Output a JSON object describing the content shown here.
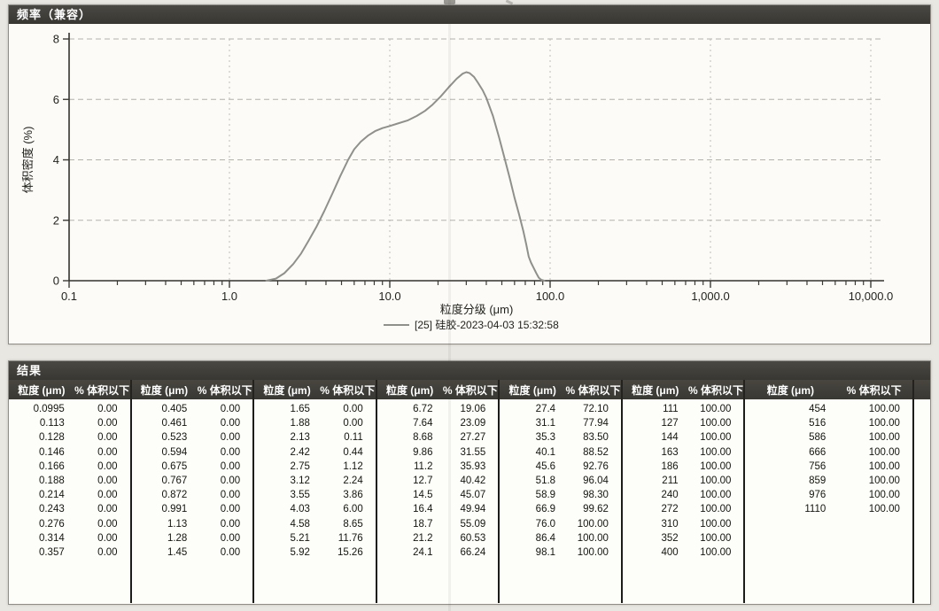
{
  "chart_panel": {
    "title": "频率（兼容）"
  },
  "chart_data": {
    "type": "line",
    "title": "频率（兼容）",
    "xlabel": "粒度分级 (μm)",
    "ylabel": "体积密度 (%)",
    "x_scale": "log",
    "xlim": [
      0.1,
      10000
    ],
    "ylim": [
      0,
      8
    ],
    "x_tick_values": [
      0.1,
      1,
      10,
      100,
      1000,
      10000
    ],
    "x_tick_labels": [
      "0.1",
      "1.0",
      "10.0",
      "100.0",
      "1,000.0",
      "10,000.0"
    ],
    "y_ticks": [
      0,
      2,
      4,
      6,
      8
    ],
    "grid": true,
    "legend_position": "bottom",
    "series": [
      {
        "name": "[25] 硅胶-2023-04-03 15:32:58",
        "color": "#8f8f8c",
        "points": [
          [
            1.7,
            0
          ],
          [
            1.95,
            0.07
          ],
          [
            2.2,
            0.25
          ],
          [
            2.5,
            0.55
          ],
          [
            2.8,
            0.9
          ],
          [
            3.1,
            1.3
          ],
          [
            3.5,
            1.8
          ],
          [
            3.9,
            2.3
          ],
          [
            4.4,
            2.9
          ],
          [
            4.9,
            3.45
          ],
          [
            5.5,
            4.0
          ],
          [
            6.0,
            4.35
          ],
          [
            6.6,
            4.6
          ],
          [
            7.3,
            4.8
          ],
          [
            8.1,
            4.95
          ],
          [
            9.0,
            5.05
          ],
          [
            10.0,
            5.12
          ],
          [
            11.2,
            5.2
          ],
          [
            12.9,
            5.3
          ],
          [
            14.7,
            5.45
          ],
          [
            16.6,
            5.62
          ],
          [
            18.5,
            5.83
          ],
          [
            20.8,
            6.1
          ],
          [
            23.3,
            6.4
          ],
          [
            26.1,
            6.68
          ],
          [
            28.5,
            6.85
          ],
          [
            30.0,
            6.9
          ],
          [
            31.5,
            6.87
          ],
          [
            33.5,
            6.75
          ],
          [
            35.5,
            6.55
          ],
          [
            38.0,
            6.3
          ],
          [
            40.0,
            6.05
          ],
          [
            44.0,
            5.45
          ],
          [
            48.0,
            4.75
          ],
          [
            52.0,
            4.05
          ],
          [
            56.0,
            3.4
          ],
          [
            60.0,
            2.75
          ],
          [
            64.0,
            2.2
          ],
          [
            68.0,
            1.65
          ],
          [
            71.0,
            1.2
          ],
          [
            73.5,
            0.8
          ],
          [
            76.0,
            0.6
          ],
          [
            79.0,
            0.42
          ],
          [
            82.0,
            0.25
          ],
          [
            85.0,
            0.1
          ],
          [
            88.0,
            0.03
          ],
          [
            92.0,
            0
          ]
        ]
      }
    ]
  },
  "results_panel": {
    "title": "结果",
    "header": {
      "size": "粒度 (μm)",
      "pct": "% 体积以下"
    },
    "groups": [
      {
        "rows": [
          [
            "0.0995",
            "0.00"
          ],
          [
            "0.113",
            "0.00"
          ],
          [
            "0.128",
            "0.00"
          ],
          [
            "0.146",
            "0.00"
          ],
          [
            "0.166",
            "0.00"
          ],
          [
            "0.188",
            "0.00"
          ],
          [
            "0.214",
            "0.00"
          ],
          [
            "0.243",
            "0.00"
          ],
          [
            "0.276",
            "0.00"
          ],
          [
            "0.314",
            "0.00"
          ],
          [
            "0.357",
            "0.00"
          ]
        ]
      },
      {
        "rows": [
          [
            "0.405",
            "0.00"
          ],
          [
            "0.461",
            "0.00"
          ],
          [
            "0.523",
            "0.00"
          ],
          [
            "0.594",
            "0.00"
          ],
          [
            "0.675",
            "0.00"
          ],
          [
            "0.767",
            "0.00"
          ],
          [
            "0.872",
            "0.00"
          ],
          [
            "0.991",
            "0.00"
          ],
          [
            "1.13",
            "0.00"
          ],
          [
            "1.28",
            "0.00"
          ],
          [
            "1.45",
            "0.00"
          ]
        ]
      },
      {
        "rows": [
          [
            "1.65",
            "0.00"
          ],
          [
            "1.88",
            "0.00"
          ],
          [
            "2.13",
            "0.11"
          ],
          [
            "2.42",
            "0.44"
          ],
          [
            "2.75",
            "1.12"
          ],
          [
            "3.12",
            "2.24"
          ],
          [
            "3.55",
            "3.86"
          ],
          [
            "4.03",
            "6.00"
          ],
          [
            "4.58",
            "8.65"
          ],
          [
            "5.21",
            "11.76"
          ],
          [
            "5.92",
            "15.26"
          ]
        ]
      },
      {
        "rows": [
          [
            "6.72",
            "19.06"
          ],
          [
            "7.64",
            "23.09"
          ],
          [
            "8.68",
            "27.27"
          ],
          [
            "9.86",
            "31.55"
          ],
          [
            "11.2",
            "35.93"
          ],
          [
            "12.7",
            "40.42"
          ],
          [
            "14.5",
            "45.07"
          ],
          [
            "16.4",
            "49.94"
          ],
          [
            "18.7",
            "55.09"
          ],
          [
            "21.2",
            "60.53"
          ],
          [
            "24.1",
            "66.24"
          ]
        ]
      },
      {
        "rows": [
          [
            "27.4",
            "72.10"
          ],
          [
            "31.1",
            "77.94"
          ],
          [
            "35.3",
            "83.50"
          ],
          [
            "40.1",
            "88.52"
          ],
          [
            "45.6",
            "92.76"
          ],
          [
            "51.8",
            "96.04"
          ],
          [
            "58.9",
            "98.30"
          ],
          [
            "66.9",
            "99.62"
          ],
          [
            "76.0",
            "100.00"
          ],
          [
            "86.4",
            "100.00"
          ],
          [
            "98.1",
            "100.00"
          ]
        ]
      },
      {
        "rows": [
          [
            "111",
            "100.00"
          ],
          [
            "127",
            "100.00"
          ],
          [
            "144",
            "100.00"
          ],
          [
            "163",
            "100.00"
          ],
          [
            "186",
            "100.00"
          ],
          [
            "211",
            "100.00"
          ],
          [
            "240",
            "100.00"
          ],
          [
            "272",
            "100.00"
          ],
          [
            "310",
            "100.00"
          ],
          [
            "352",
            "100.00"
          ],
          [
            "400",
            "100.00"
          ]
        ]
      },
      {
        "rows": [
          [
            "454",
            "100.00"
          ],
          [
            "516",
            "100.00"
          ],
          [
            "586",
            "100.00"
          ],
          [
            "666",
            "100.00"
          ],
          [
            "756",
            "100.00"
          ],
          [
            "859",
            "100.00"
          ],
          [
            "976",
            "100.00"
          ],
          [
            "1110",
            "100.00"
          ]
        ]
      }
    ]
  }
}
